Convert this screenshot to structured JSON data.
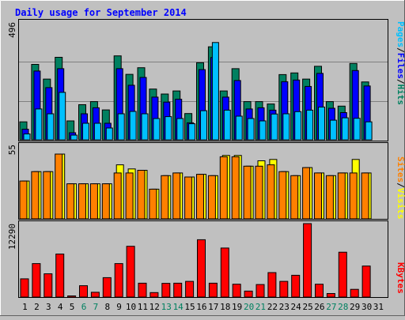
{
  "chart_data": [
    {
      "type": "bar",
      "title": "Daily usage for September 2014",
      "categories": [
        "1",
        "2",
        "3",
        "4",
        "5",
        "6",
        "7",
        "8",
        "9",
        "10",
        "11",
        "12",
        "13",
        "14",
        "15",
        "16",
        "17",
        "18",
        "19",
        "20",
        "21",
        "22",
        "23",
        "24",
        "25",
        "26",
        "27",
        "28",
        "29",
        "30",
        "31"
      ],
      "weekend_days": [
        "6",
        "7",
        "13",
        "14",
        "20",
        "21",
        "27",
        "28"
      ],
      "y_tick_label": "496",
      "ylim": [
        0,
        496
      ],
      "series": [
        {
          "name": "Hits",
          "color": "#008060",
          "values": [
            76,
            318,
            256,
            348,
            80,
            148,
            161,
            126,
            354,
            276,
            304,
            214,
            193,
            206,
            111,
            325,
            392,
            206,
            300,
            161,
            161,
            151,
            275,
            282,
            256,
            310,
            161,
            142,
            322,
            244,
            0
          ]
        },
        {
          "name": "Files",
          "color": "#0000ff",
          "values": [
            45,
            290,
            220,
            300,
            30,
            110,
            135,
            70,
            300,
            230,
            263,
            180,
            159,
            171,
            72,
            296,
            347,
            180,
            250,
            130,
            135,
            125,
            245,
            252,
            225,
            280,
            133,
            115,
            292,
            227,
            0
          ]
        },
        {
          "name": "Pages",
          "color": "#00c0ff",
          "values": [
            25,
            130,
            110,
            200,
            20,
            70,
            70,
            50,
            110,
            120,
            110,
            90,
            98,
            90,
            68,
            123,
            410,
            125,
            100,
            90,
            80,
            109,
            110,
            119,
            125,
            138,
            83,
            93,
            91,
            76,
            0
          ]
        }
      ],
      "axis_label": "Pages / Files / Hits"
    },
    {
      "type": "bar",
      "categories": [
        "1",
        "2",
        "3",
        "4",
        "5",
        "6",
        "7",
        "8",
        "9",
        "10",
        "11",
        "12",
        "13",
        "14",
        "15",
        "16",
        "17",
        "18",
        "19",
        "20",
        "21",
        "22",
        "23",
        "24",
        "25",
        "26",
        "27",
        "28",
        "29",
        "30",
        "31"
      ],
      "y_tick_label": "55",
      "ylim": [
        0,
        55
      ],
      "series": [
        {
          "name": "Visits",
          "color": "#ffff00",
          "values": [
            28,
            35,
            35,
            48,
            26,
            26,
            26,
            26,
            40,
            37,
            36,
            22,
            32,
            34,
            31,
            33,
            32,
            47,
            47,
            39,
            43,
            44,
            35,
            32,
            38,
            34,
            32,
            34,
            44,
            34,
            0
          ]
        },
        {
          "name": "Sites",
          "color": "#ff8000",
          "values": [
            28,
            35,
            35,
            48,
            26,
            26,
            26,
            26,
            34,
            34,
            36,
            22,
            32,
            34,
            31,
            33,
            32,
            46,
            46,
            39,
            39,
            40,
            35,
            32,
            38,
            34,
            32,
            34,
            34,
            34,
            0
          ]
        }
      ],
      "axis_label": "Sites / Visits"
    },
    {
      "type": "bar",
      "categories": [
        "1",
        "2",
        "3",
        "4",
        "5",
        "6",
        "7",
        "8",
        "9",
        "10",
        "11",
        "12",
        "13",
        "14",
        "15",
        "16",
        "17",
        "18",
        "19",
        "20",
        "21",
        "22",
        "23",
        "24",
        "25",
        "26",
        "27",
        "28",
        "29",
        "30",
        "31"
      ],
      "y_tick_label": "12290",
      "ylim": [
        0,
        12290
      ],
      "series": [
        {
          "name": "KBytes",
          "color": "#ff0000",
          "values": [
            3050,
            5600,
            3900,
            7200,
            200,
            1900,
            800,
            3250,
            5600,
            8500,
            2330,
            750,
            2300,
            2330,
            2630,
            9600,
            2330,
            8200,
            2150,
            1000,
            2100,
            4100,
            2630,
            3650,
            12290,
            2150,
            600,
            7500,
            1300,
            5200,
            0
          ]
        }
      ],
      "axis_label": "KBytes"
    }
  ]
}
